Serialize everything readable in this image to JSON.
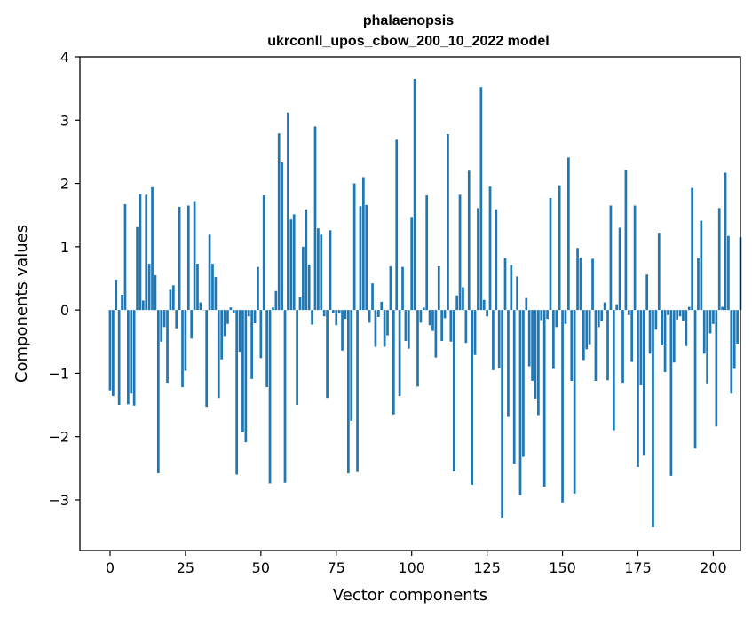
{
  "chart_data": {
    "type": "bar",
    "title": "phalaenopsis",
    "subtitle": "ukrconll_upos_cbow_200_10_2022 model",
    "xlabel": "Vector components",
    "ylabel": "Components values",
    "xlim": [
      -10,
      209
    ],
    "ylim": [
      -3.8,
      4.0
    ],
    "xticks": [
      0,
      25,
      50,
      75,
      100,
      125,
      150,
      175,
      200
    ],
    "yticks": [
      -3,
      -2,
      -1,
      0,
      1,
      2,
      3,
      4
    ],
    "xtick_labels": [
      "0",
      "25",
      "50",
      "75",
      "100",
      "125",
      "150",
      "175",
      "200"
    ],
    "ytick_labels": [
      "−3",
      "−2",
      "−1",
      "0",
      "1",
      "2",
      "3",
      "4"
    ],
    "grid": false,
    "bar_color": "#1f77b4",
    "values": [
      -1.27,
      -1.36,
      0.48,
      -1.5,
      0.24,
      1.67,
      -1.49,
      -1.32,
      -1.51,
      1.31,
      1.83,
      0.15,
      1.82,
      0.73,
      1.94,
      0.55,
      -2.58,
      -0.5,
      -0.27,
      -1.15,
      0.32,
      0.39,
      -0.29,
      1.63,
      -1.22,
      -0.96,
      1.65,
      -0.45,
      1.72,
      0.73,
      0.12,
      0.0,
      -1.53,
      1.19,
      0.73,
      0.52,
      -1.39,
      -0.78,
      -0.41,
      -0.22,
      0.04,
      -0.04,
      -2.6,
      -0.66,
      -1.93,
      -2.09,
      -0.1,
      -1.09,
      -0.21,
      0.68,
      -0.76,
      1.81,
      -1.22,
      -2.74,
      0.04,
      0.3,
      2.79,
      2.33,
      -2.73,
      3.12,
      1.43,
      1.51,
      -1.5,
      0.2,
      1.0,
      1.59,
      0.72,
      -0.23,
      2.9,
      1.29,
      1.19,
      -0.1,
      -1.39,
      1.26,
      -0.04,
      -0.24,
      -0.05,
      -0.64,
      -0.14,
      -2.58,
      -1.75,
      2.0,
      -2.56,
      1.64,
      2.1,
      1.66,
      -0.2,
      0.42,
      -0.58,
      -0.11,
      0.13,
      -0.58,
      -0.4,
      0.69,
      -1.65,
      2.69,
      -1.36,
      0.68,
      -0.49,
      -0.61,
      1.47,
      3.65,
      -1.21,
      -0.2,
      0.04,
      1.81,
      -0.24,
      -0.33,
      -0.75,
      0.69,
      -0.49,
      -0.13,
      2.78,
      -0.5,
      -2.55,
      0.23,
      1.82,
      0.36,
      -0.52,
      2.2,
      -2.76,
      -0.71,
      1.61,
      3.52,
      0.16,
      -0.1,
      1.95,
      -0.95,
      1.59,
      -0.92,
      -3.28,
      0.82,
      -1.69,
      0.71,
      -2.43,
      0.53,
      -2.93,
      -2.32,
      0.19,
      -0.89,
      -1.12,
      -1.4,
      -1.66,
      -0.16,
      -2.79,
      -0.14,
      1.77,
      -0.93,
      -0.27,
      1.97,
      -3.04,
      -0.22,
      2.41,
      -1.12,
      -2.9,
      0.98,
      0.83,
      -0.79,
      -0.62,
      -0.54,
      0.81,
      -1.12,
      -0.27,
      -0.18,
      0.12,
      -1.11,
      1.65,
      -1.9,
      0.09,
      1.3,
      -1.15,
      2.21,
      -0.08,
      -0.82,
      1.65,
      -2.48,
      -1.19,
      -2.29,
      0.56,
      -0.69,
      -3.43,
      -0.31,
      1.22,
      -0.56,
      -0.98,
      -0.08,
      -2.62,
      -0.83,
      -0.15,
      -0.1,
      -0.17,
      -0.57,
      0.05,
      1.93,
      -2.19,
      0.82,
      1.41,
      -0.69,
      -1.16,
      -0.37,
      -0.22,
      -1.84,
      1.61,
      0.05,
      2.17,
      1.17,
      -1.32,
      -0.93,
      -0.53,
      1.15
    ]
  }
}
